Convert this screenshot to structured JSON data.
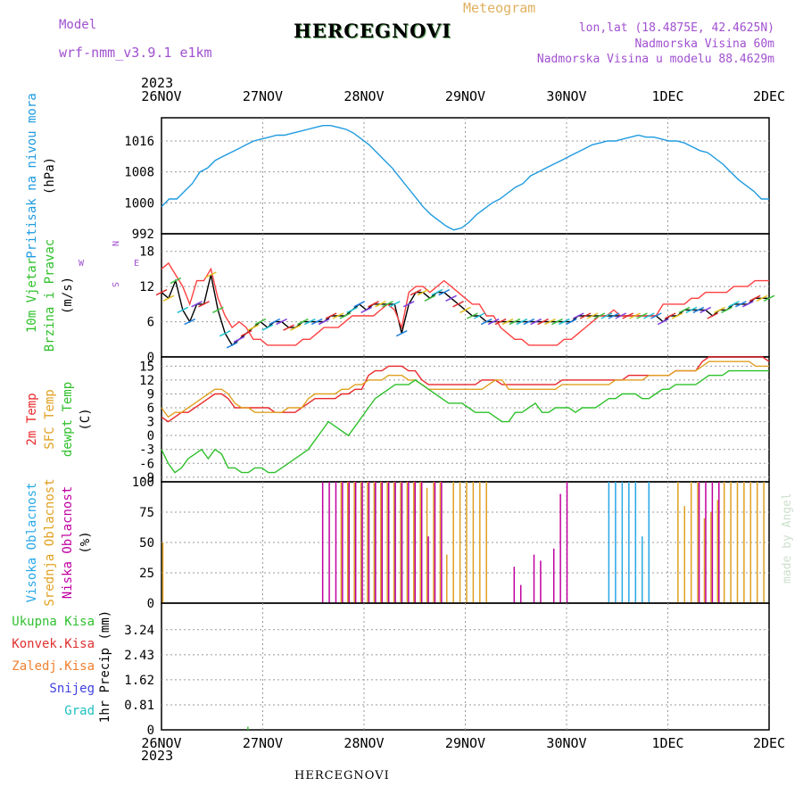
{
  "header": {
    "model_label": "Model",
    "model_name": "wrf-nmm_v3.9.1 e1km",
    "title": "HERCEGNOVI",
    "product": "Meteogram",
    "lonlat": "lon,lat (18.4875E, 42.4625N)",
    "altitude": "Nadmorska Visina 60m",
    "model_altitude": "Nadmorska Visina u modelu 88.4629m",
    "year": "2023",
    "footer_station": "HERCEGNOVI",
    "watermark": "made by Angel"
  },
  "colors": {
    "pressure": "#1e9be0",
    "temp2m": "#e8282a",
    "sfc": "#e0a020",
    "dewpt": "#2ec02a",
    "high_cloud": "#28a8e8",
    "mid_cloud": "#e0a020",
    "low_cloud": "#c000a0",
    "total_precip": "#30c030",
    "conv_precip": "#e03030",
    "frozen": "#f08030",
    "snow": "#4040e0",
    "graupel": "#20c0c0",
    "wind_speed": "#000000",
    "wind_gust": "#ff4040"
  },
  "chart_data": [
    {
      "type": "line",
      "panel": "pressure",
      "ylabel_lines": [
        "Pritisak na nivou mora",
        "(hPa)"
      ],
      "x_ticks": [
        "26NOV",
        "27NOV",
        "28NOV",
        "29NOV",
        "30NOV",
        "1DEC",
        "2DEC"
      ],
      "ylim": [
        992,
        1022
      ],
      "yticks": [
        992,
        1000,
        1008,
        1016
      ],
      "grid": true,
      "series": [
        {
          "values": [
            999,
            1001,
            1001,
            1003,
            1005,
            1008,
            1009,
            1011,
            1012,
            1013,
            1014,
            1015,
            1016,
            1016.5,
            1017,
            1017.5,
            1017.5,
            1018,
            1018.5,
            1019,
            1019.5,
            1020,
            1020,
            1019.5,
            1019,
            1018,
            1016.5,
            1015,
            1013,
            1011,
            1009,
            1006.5,
            1004,
            1001.5,
            999,
            997,
            995.5,
            994,
            993,
            993.5,
            995,
            997,
            998.5,
            1000,
            1001,
            1002.5,
            1004,
            1005,
            1007,
            1008,
            1009,
            1010,
            1011,
            1012,
            1013,
            1014,
            1015,
            1015.5,
            1016,
            1016,
            1016.5,
            1017,
            1017.5,
            1017,
            1017,
            1016.5,
            1016,
            1016,
            1015.5,
            1014.5,
            1013.5,
            1013,
            1011.5,
            1010,
            1008,
            1006,
            1004.5,
            1003,
            1001,
            1001
          ]
        }
      ]
    },
    {
      "type": "line",
      "panel": "wind",
      "ylabel_lines": [
        "10m Vjetar",
        "Brzina i Pravac",
        "(m/s)"
      ],
      "compass": {
        "n": "N",
        "s": "S",
        "w": "W",
        "e": "E"
      },
      "ylim": [
        0,
        21
      ],
      "yticks": [
        0,
        6,
        12,
        18
      ],
      "series": [
        {
          "values": [
            11,
            10,
            13,
            8,
            6,
            9,
            9,
            14,
            8,
            4,
            2,
            3,
            4,
            5,
            6,
            5,
            6,
            6,
            5,
            5,
            6,
            6,
            6,
            6,
            7,
            7,
            7,
            8,
            9,
            8,
            9,
            9,
            9,
            9,
            4,
            9,
            11,
            11,
            10,
            11,
            11,
            10,
            9,
            8,
            7,
            7,
            6,
            6,
            6,
            6,
            6,
            6,
            6,
            6,
            6,
            6,
            6,
            6,
            6,
            7,
            7,
            7,
            7,
            7,
            7,
            7,
            7,
            7,
            7,
            7,
            7,
            6,
            7,
            7,
            8,
            8,
            8,
            8,
            7,
            8,
            8,
            9,
            9,
            9,
            10,
            10,
            10
          ]
        },
        {
          "values": [
            15,
            16,
            14,
            12,
            9,
            13,
            13,
            15,
            10,
            7,
            5,
            6,
            5,
            3,
            3,
            2,
            2,
            2,
            2,
            2,
            3,
            3,
            4,
            5,
            5,
            5,
            6,
            7,
            7,
            7,
            7,
            8,
            9,
            8,
            5,
            11,
            12,
            12,
            11,
            12,
            13,
            12,
            11,
            10,
            9,
            9,
            7,
            7,
            5,
            4,
            3,
            3,
            2,
            2,
            2,
            2,
            2,
            3,
            3,
            4,
            5,
            6,
            7,
            7,
            8,
            7,
            7,
            7,
            7,
            7,
            7,
            9,
            9,
            9,
            9,
            10,
            10,
            11,
            11,
            11,
            11,
            12,
            12,
            12,
            13,
            13,
            13
          ]
        }
      ]
    },
    {
      "type": "line",
      "panel": "temperature",
      "ylabel_lines": [
        "2m Temp",
        "SFC Temp",
        "dewpt Temp",
        "(C)"
      ],
      "ylim": [
        -10,
        17
      ],
      "yticks": [
        -9,
        -6,
        -3,
        0,
        3,
        6,
        9,
        12,
        15
      ],
      "series": [
        {
          "values": [
            4,
            3,
            4,
            5,
            5,
            6,
            7,
            8,
            9,
            9,
            8,
            6,
            6,
            6,
            6,
            6,
            6,
            5,
            5,
            5,
            5,
            6,
            7,
            8,
            8,
            8,
            8,
            9,
            9,
            10,
            10,
            13,
            14,
            14,
            15,
            15,
            15,
            14,
            14,
            12,
            11,
            11,
            11,
            11,
            11,
            11,
            11,
            11,
            12,
            12,
            12,
            11,
            11,
            11,
            11,
            11,
            11,
            11,
            11,
            11,
            12,
            12,
            12,
            12,
            12,
            12,
            12,
            12,
            12,
            12,
            13,
            13,
            13,
            13,
            13,
            13,
            13,
            14,
            14,
            14,
            14,
            16,
            17,
            17,
            17,
            17,
            17,
            17,
            17,
            17,
            17,
            16
          ]
        },
        {
          "values": [
            6,
            4,
            5,
            5,
            6,
            7,
            8,
            9,
            10,
            10,
            9,
            7,
            6,
            6,
            5,
            5,
            5,
            5,
            5,
            6,
            6,
            6,
            8,
            9,
            9,
            9,
            9,
            10,
            10,
            11,
            11,
            12,
            12,
            12,
            13,
            13,
            13,
            12,
            12,
            11,
            10,
            10,
            10,
            10,
            10,
            10,
            10,
            10,
            10,
            11,
            12,
            12,
            10,
            10,
            10,
            10,
            10,
            10,
            10,
            10,
            11,
            11,
            11,
            11,
            11,
            11,
            11,
            11,
            12,
            12,
            12,
            12,
            12,
            13,
            13,
            13,
            13,
            14,
            14,
            14,
            14,
            15,
            16,
            16,
            16,
            16,
            16,
            16,
            16,
            15,
            15,
            15
          ]
        },
        {
          "values": [
            -3,
            -6,
            -8,
            -7,
            -5,
            -4,
            -3,
            -5,
            -3,
            -4,
            -7,
            -7,
            -8,
            -8,
            -7,
            -7,
            -8,
            -8,
            -7,
            -6,
            -5,
            -4,
            -3,
            -1,
            1,
            3,
            2,
            1,
            0,
            2,
            4,
            6,
            8,
            9,
            10,
            11,
            11,
            11,
            12,
            11,
            10,
            9,
            8,
            7,
            7,
            7,
            6,
            5,
            5,
            5,
            4,
            3,
            3,
            5,
            5,
            6,
            7,
            5,
            5,
            6,
            6,
            6,
            5,
            6,
            6,
            6,
            7,
            8,
            8,
            9,
            9,
            9,
            8,
            8,
            9,
            10,
            10,
            11,
            11,
            11,
            11,
            12,
            13,
            13,
            13,
            14,
            14,
            14,
            14,
            14,
            14,
            14
          ]
        }
      ]
    },
    {
      "type": "bar",
      "panel": "cloud_cover",
      "ylabel_lines": [
        "Visoka Oblacnost",
        "Srednja Oblacnost",
        "Niska Oblacnost",
        "(%)"
      ],
      "ylim": [
        0,
        100
      ],
      "yticks": [
        0,
        25,
        50,
        75,
        100
      ],
      "series": [
        {
          "name": "Visoka Oblacnost",
          "values": [
            0,
            0,
            0,
            0,
            0,
            0,
            0,
            0,
            0,
            0,
            0,
            0,
            0,
            0,
            0,
            0,
            0,
            0,
            0,
            0,
            0,
            0,
            0,
            0,
            0,
            0,
            0,
            0,
            0,
            100,
            100,
            0,
            100,
            100,
            100,
            100,
            100,
            0,
            0,
            0,
            0,
            0,
            0,
            0,
            0,
            0,
            0,
            0,
            0,
            0,
            0,
            0,
            0,
            0,
            0,
            0,
            0,
            0,
            0,
            0,
            0,
            0,
            0,
            0,
            0,
            0,
            0,
            100,
            100,
            100,
            100,
            100,
            55,
            100,
            0,
            0,
            0,
            0,
            0,
            0,
            0,
            0,
            0,
            0,
            0,
            0,
            0,
            0,
            0,
            0,
            0
          ]
        },
        {
          "name": "Srednja Oblacnost",
          "values": [
            50,
            0,
            0,
            0,
            0,
            0,
            0,
            0,
            0,
            0,
            0,
            0,
            0,
            0,
            0,
            0,
            0,
            0,
            0,
            0,
            0,
            0,
            0,
            0,
            0,
            0,
            0,
            100,
            100,
            100,
            100,
            100,
            100,
            100,
            100,
            100,
            100,
            100,
            100,
            100,
            95,
            100,
            100,
            40,
            100,
            100,
            100,
            100,
            100,
            100,
            0,
            0,
            0,
            0,
            0,
            0,
            0,
            0,
            0,
            0,
            0,
            0,
            0,
            0,
            0,
            0,
            0,
            0,
            0,
            0,
            0,
            0,
            0,
            0,
            0,
            0,
            0,
            0,
            100,
            80,
            100,
            100,
            70,
            75,
            85,
            100,
            100,
            100,
            100,
            100,
            100,
            100
          ]
        },
        {
          "name": "Niska Oblacnost",
          "values": [
            0,
            0,
            0,
            0,
            0,
            0,
            0,
            0,
            0,
            0,
            0,
            0,
            0,
            0,
            0,
            0,
            0,
            0,
            0,
            0,
            0,
            0,
            0,
            0,
            100,
            100,
            100,
            100,
            100,
            100,
            100,
            100,
            100,
            100,
            100,
            100,
            100,
            100,
            100,
            100,
            55,
            100,
            100,
            0,
            0,
            0,
            0,
            0,
            0,
            0,
            0,
            0,
            0,
            30,
            15,
            0,
            40,
            35,
            0,
            45,
            90,
            100,
            0,
            0,
            0,
            0,
            0,
            0,
            0,
            0,
            0,
            0,
            0,
            0,
            0,
            0,
            0,
            0,
            0,
            0,
            0,
            100,
            100,
            100,
            100,
            0,
            0,
            0,
            0,
            0,
            0,
            0
          ]
        }
      ]
    },
    {
      "type": "bar",
      "panel": "precipitation",
      "ylabel_lines": [
        "1hr Precip (mm)"
      ],
      "legend": [
        "Ukupna Kisa",
        "Konvek.Kisa",
        "Zaledj.Kisa",
        "Snijeg",
        "Grad"
      ],
      "ylim": [
        0,
        4.1
      ],
      "yticks": [
        0,
        0.81,
        1.62,
        2.43,
        3.24
      ],
      "series": [
        {
          "name": "Ukupna Kisa",
          "values": [
            0,
            0,
            0,
            0,
            0,
            0,
            0,
            0,
            0,
            0,
            0,
            0,
            0,
            0,
            0,
            0,
            0,
            0,
            0,
            0,
            0,
            0,
            0,
            0,
            0,
            0,
            0,
            0,
            0,
            0,
            0,
            0,
            0,
            0.1,
            0,
            0,
            0,
            0,
            0,
            0,
            0,
            0,
            0,
            0,
            0,
            0,
            0,
            0,
            0,
            0,
            0,
            0,
            0,
            0,
            0,
            0,
            0,
            0,
            0,
            0,
            0,
            0,
            0,
            0,
            0,
            0,
            0,
            0,
            0,
            0,
            0,
            0,
            0,
            0,
            0,
            0,
            0,
            0,
            0,
            0,
            0,
            0,
            0,
            0,
            0,
            0,
            0,
            0,
            0,
            0,
            0,
            0,
            0,
            0,
            0,
            0,
            0,
            0,
            0,
            0,
            0,
            0,
            0,
            0,
            0,
            0,
            0,
            0,
            0,
            0,
            0,
            0,
            0,
            0,
            0,
            0,
            0,
            0,
            0,
            0,
            0,
            0,
            0,
            0,
            0,
            0,
            0,
            0,
            0,
            0,
            0,
            0,
            0,
            0,
            0,
            0,
            0,
            0,
            0,
            0,
            0,
            0,
            0,
            0,
            0,
            0,
            0,
            0,
            0,
            0,
            0,
            0,
            0,
            0,
            0,
            0,
            0,
            0,
            0,
            0,
            0,
            0,
            0,
            0,
            0,
            0,
            0,
            0,
            0,
            0,
            0,
            0,
            0,
            0,
            0,
            0,
            0,
            0,
            0,
            0,
            0,
            0,
            0,
            0,
            0,
            0,
            0,
            0,
            0,
            0,
            0,
            0,
            0,
            0,
            0,
            0,
            0,
            0,
            0,
            0,
            0,
            0,
            0,
            0,
            0,
            0,
            0,
            0,
            0,
            0,
            0,
            0,
            0,
            0,
            0,
            0,
            0,
            0,
            0,
            0,
            0,
            0,
            0,
            0,
            0,
            0,
            0,
            0,
            0,
            0,
            0,
            0
          ]
        }
      ]
    }
  ]
}
